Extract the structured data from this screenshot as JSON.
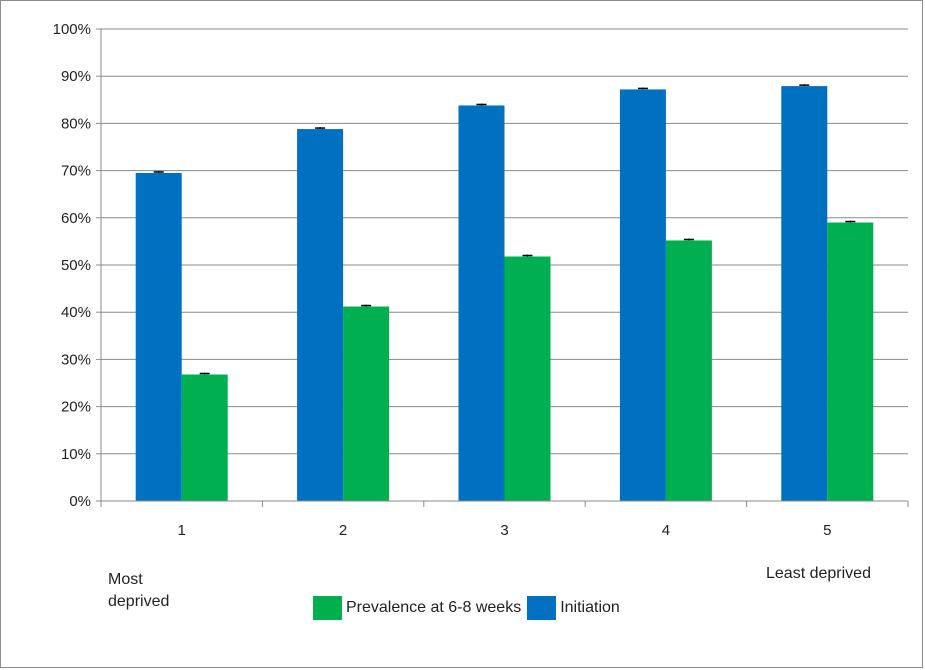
{
  "chart_data": {
    "type": "bar",
    "categories": [
      "1",
      "2",
      "3",
      "4",
      "5"
    ],
    "series": [
      {
        "name": "Initiation",
        "color": "#0070c0",
        "values": [
          69.5,
          78.8,
          83.8,
          87.2,
          87.9
        ]
      },
      {
        "name": "Prevalence at 6-8 weeks",
        "color": "#00b050",
        "values": [
          26.8,
          41.2,
          51.8,
          55.2,
          59.0
        ]
      }
    ],
    "ylim": [
      0,
      100
    ],
    "yticks": [
      "0%",
      "10%",
      "20%",
      "30%",
      "40%",
      "50%",
      "60%",
      "70%",
      "80%",
      "90%",
      "100%"
    ],
    "error_bars": true,
    "grid": true,
    "legend": "bottom",
    "annotations": {
      "left": "Most\ndeprived",
      "right": "Least deprived"
    }
  }
}
